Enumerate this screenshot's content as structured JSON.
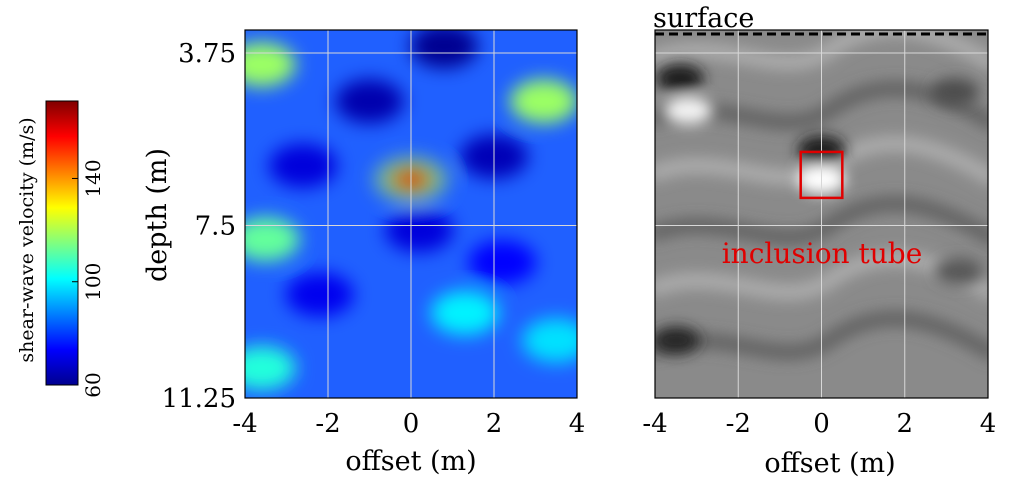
{
  "chart_data": [
    {
      "type": "heatmap",
      "panel": "shear-wave velocity map",
      "colormap": "jet",
      "xlabel": "offset (m)",
      "ylabel": "depth (m)",
      "xlim": [
        -4,
        4
      ],
      "ylim": [
        11.25,
        3.25
      ],
      "x_ticks": [
        "-4",
        "-2",
        "0",
        "2",
        "4"
      ],
      "y_ticks": [
        "3.75",
        "7.5",
        "11.25"
      ],
      "y_tick_values": [
        3.75,
        7.5,
        11.25
      ],
      "grid": true,
      "colorbar": {
        "label": "shear-wave velocity (m/s)",
        "range": [
          60,
          170
        ],
        "ticks": [
          "60",
          "100",
          "140"
        ],
        "tick_values": [
          60,
          100,
          140
        ]
      },
      "features": [
        {
          "x": 0.0,
          "y": 6.5,
          "value": 160
        },
        {
          "x": -3.6,
          "y": 4.0,
          "value": 118
        },
        {
          "x": 3.2,
          "y": 4.8,
          "value": 118
        },
        {
          "x": -3.5,
          "y": 7.8,
          "value": 112
        },
        {
          "x": -3.6,
          "y": 10.6,
          "value": 105
        },
        {
          "x": 1.3,
          "y": 9.4,
          "value": 100
        },
        {
          "x": 3.5,
          "y": 10.0,
          "value": 98
        },
        {
          "x": 0.8,
          "y": 3.6,
          "value": 62
        },
        {
          "x": -1.0,
          "y": 4.8,
          "value": 65
        },
        {
          "x": 2.0,
          "y": 6.0,
          "value": 66
        },
        {
          "x": -2.6,
          "y": 6.2,
          "value": 70
        },
        {
          "x": 0.2,
          "y": 7.6,
          "value": 70
        },
        {
          "x": -2.2,
          "y": 9.0,
          "value": 72
        },
        {
          "x": 2.2,
          "y": 8.3,
          "value": 74
        }
      ]
    },
    {
      "type": "heatmap",
      "panel": "grayscale image",
      "colormap": "gray",
      "xlabel": "offset (m)",
      "xlim": [
        -4,
        4
      ],
      "ylim": [
        11.25,
        3.25
      ],
      "x_ticks": [
        "-4",
        "-2",
        "0",
        "2",
        "4"
      ],
      "grid": true,
      "annotations": {
        "surface_label": "surface",
        "inclusion_label": "inclusion tube",
        "inclusion_box": {
          "x_min": -0.5,
          "x_max": 0.5,
          "y_min": 5.9,
          "y_max": 6.9
        }
      },
      "features": [
        {
          "x": 0.0,
          "y": 6.5,
          "value": 1.0
        },
        {
          "x": -3.2,
          "y": 5.0,
          "value": 0.95
        },
        {
          "x": 0.0,
          "y": 5.85,
          "value": 0.1
        },
        {
          "x": -3.4,
          "y": 4.3,
          "value": 0.12
        },
        {
          "x": 3.2,
          "y": 4.6,
          "value": 0.3
        },
        {
          "x": -3.5,
          "y": 10.0,
          "value": 0.15
        },
        {
          "x": 3.3,
          "y": 8.5,
          "value": 0.35
        }
      ]
    }
  ]
}
